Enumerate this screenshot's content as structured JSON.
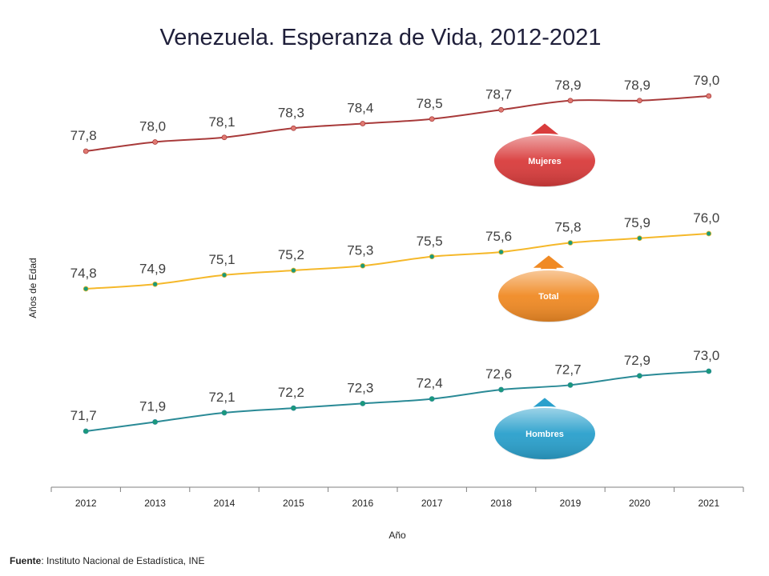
{
  "chart_data": {
    "type": "line",
    "title": "Venezuela. Esperanza de Vida, 2012-2021",
    "xlabel": "Año",
    "ylabel": "Años de Edad",
    "categories": [
      "2012",
      "2013",
      "2014",
      "2015",
      "2016",
      "2017",
      "2018",
      "2019",
      "2020",
      "2021"
    ],
    "series": [
      {
        "name": "Mujeres",
        "values": [
          77.8,
          78.0,
          78.1,
          78.3,
          78.4,
          78.5,
          78.7,
          78.9,
          78.9,
          79.0
        ],
        "labels": [
          "77,8",
          "78,0",
          "78,1",
          "78,3",
          "78,4",
          "78,5",
          "78,7",
          "78,9",
          "78,9",
          "79,0"
        ],
        "line_color": "#a83a3a",
        "marker_color": "#e07a72",
        "badge_color": "#d93c3c"
      },
      {
        "name": "Total",
        "values": [
          74.8,
          74.9,
          75.1,
          75.2,
          75.3,
          75.5,
          75.6,
          75.8,
          75.9,
          76.0
        ],
        "labels": [
          "74,8",
          "74,9",
          "75,1",
          "75,2",
          "75,3",
          "75,5",
          "75,6",
          "75,8",
          "75,9",
          "76,0"
        ],
        "line_color": "#f5b82a",
        "marker_color": "#1a9a7a",
        "badge_color": "#f08a24"
      },
      {
        "name": "Hombres",
        "values": [
          71.7,
          71.9,
          72.1,
          72.2,
          72.3,
          72.4,
          72.6,
          72.7,
          72.9,
          73.0
        ],
        "labels": [
          "71,7",
          "71,9",
          "72,1",
          "72,2",
          "72,3",
          "72,4",
          "72,6",
          "72,7",
          "72,9",
          "73,0"
        ],
        "line_color": "#2a8a96",
        "marker_color": "#1a9a7a",
        "badge_color": "#2aa0cc"
      }
    ],
    "grid": false,
    "legend": "badges at right near 2019"
  },
  "source": {
    "label": "Fuente",
    "text": ": Instituto Nacional de Estadística, INE"
  }
}
